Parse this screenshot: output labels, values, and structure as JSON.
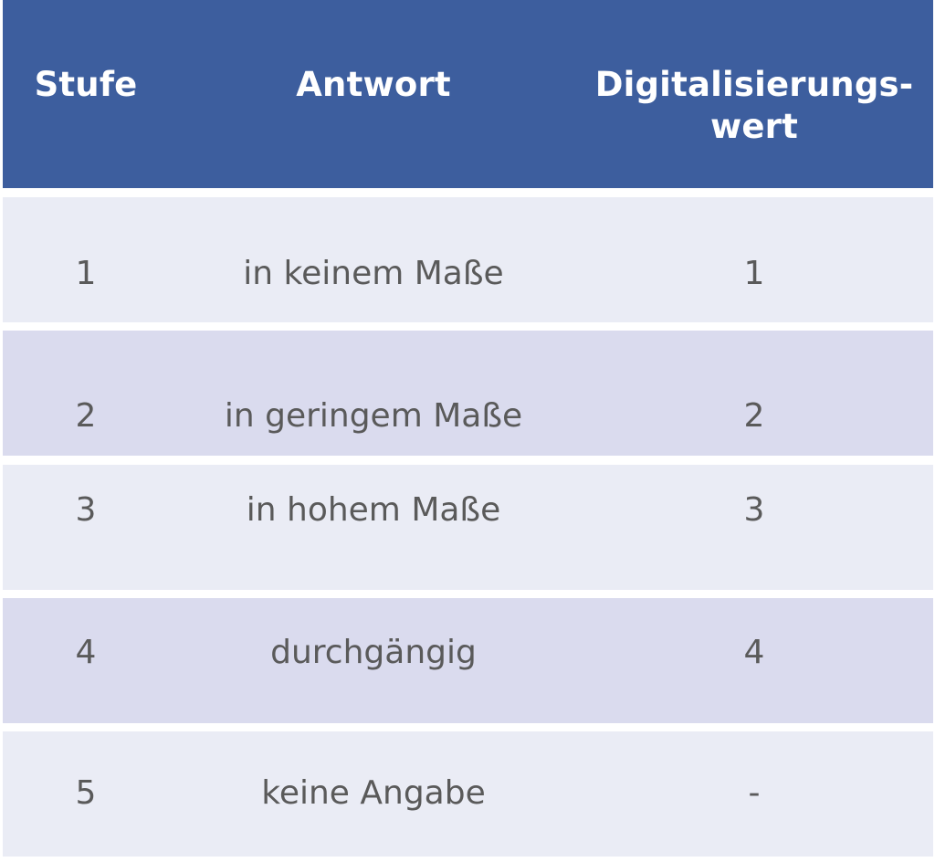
{
  "table": {
    "headers": {
      "stufe": "Stufe",
      "antwort": "Antwort",
      "wert_line1": "Digitalisierungs-",
      "wert_line2": "wert"
    },
    "rows": [
      {
        "stufe": "1",
        "antwort": "in keinem Maße",
        "wert": "1"
      },
      {
        "stufe": "2",
        "antwort": "in geringem Maße",
        "wert": "2"
      },
      {
        "stufe": "3",
        "antwort": "in hohem Maße",
        "wert": "3"
      },
      {
        "stufe": "4",
        "antwort": "durchgängig",
        "wert": "4"
      },
      {
        "stufe": "5",
        "antwort": "keine Angabe",
        "wert": "-"
      }
    ],
    "colors": {
      "header_bg": "#3d5e9e",
      "row_light": "#eaecf5",
      "row_dark": "#dadbee",
      "header_text": "#ffffff",
      "cell_text": "#5a5a5a"
    }
  }
}
